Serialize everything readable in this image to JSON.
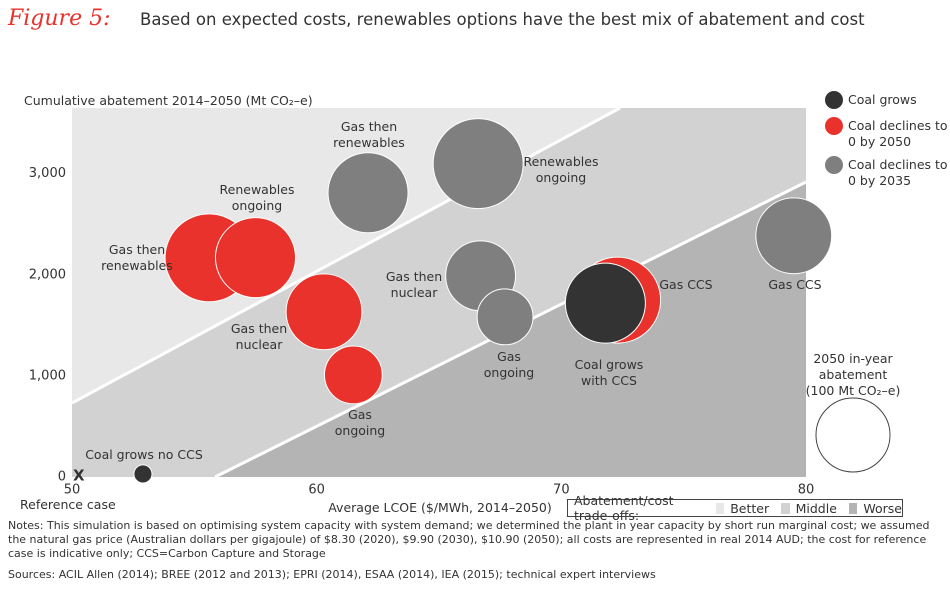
{
  "chart_data": {
    "type": "scatter",
    "figure_label": "Figure 5:",
    "title": "Based on expected costs, renewables options have the best mix of abatement and cost",
    "y_label": "Cumulative abatement 2014–2050 (Mt CO₂–e)",
    "x_label": "Average LCOE ($/MWh, 2014–2050)",
    "xlim": [
      50,
      80
    ],
    "xticks": [
      50,
      60,
      70,
      80
    ],
    "ylim": [
      0,
      3650
    ],
    "yticks": [
      0,
      {
        "value": 1000,
        "label": "1,000"
      },
      {
        "value": 2000,
        "label": "2,000"
      },
      {
        "value": 3000,
        "label": "3,000"
      }
    ],
    "reference_case": {
      "marker": "X",
      "label": "Reference case"
    },
    "series": [
      {
        "name": "Coal grows",
        "color": "#333333",
        "labels": [
          "Coal grows no CCS",
          "Coal grows with CCS"
        ],
        "x": [
          52.9,
          71.8
        ],
        "values": [
          30,
          1720
        ],
        "sizes": [
          6,
          117
        ]
      },
      {
        "name": "Coal declines to 0 by 2050",
        "color": "#e8322b",
        "labels": [
          "Gas then renewables",
          "Renewables ongoing",
          "Gas then nuclear",
          "Gas ongoing",
          "Gas CCS"
        ],
        "x": [
          55.6,
          57.5,
          60.3,
          61.5,
          72.3
        ],
        "values": [
          2168,
          2170,
          1634,
          1010,
          1750
        ],
        "sizes": [
          141,
          117,
          105,
          61,
          135
        ]
      },
      {
        "name": "Coal declines to 0 by 2035",
        "color": "#7f7f80",
        "labels": [
          "Gas then renewables",
          "Renewables ongoing",
          "Gas then nuclear",
          "Gas ongoing",
          "Gas CCS"
        ],
        "x": [
          62.1,
          66.6,
          66.7,
          67.7,
          79.5
        ],
        "values": [
          2812,
          3100,
          1990,
          1584,
          2386
        ],
        "sizes": [
          117,
          148,
          89,
          57,
          105
        ]
      }
    ],
    "size_legend": {
      "title": "2050 in-year abatement",
      "label": "(100 Mt CO₂–e)",
      "value": 100
    },
    "tradeoff_legend": {
      "title": "Abatement/cost trade-offs:",
      "items": [
        "Better",
        "Middle",
        "Worse"
      ]
    },
    "notes": "Notes: This simulation is based on optimising system capacity with system demand; we determined the plant in year capacity by short run marginal cost; we assumed the natural gas price (Australian dollars per gigajoule) of $8.30 (2020), $9.90 (2030), $10.90 (2050); all costs are represented in real 2014 AUD; the cost for reference case is indicative only; CCS=Carbon Capture and Storage",
    "sources": "Sources: ACIL Allen (2014); BREE (2012 and 2013); EPRI (2014), ESAA (2014), IEA (2015); technical expert interviews"
  }
}
